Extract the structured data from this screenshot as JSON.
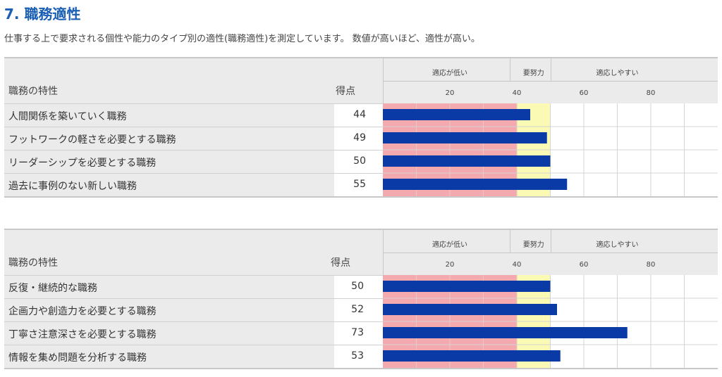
{
  "page": {
    "title": "7. 職務適性",
    "description": "仕事する上で要求される個性や能力のタイプ別の適性(職務適性)を測定しています。 数値が高いほど、適性が高い。"
  },
  "chart_data": [
    {
      "type": "bar",
      "orientation": "horizontal",
      "column_header_label": "職務の特性",
      "column_header_score": "得点",
      "zone_labels": [
        "適応が低い",
        "要努力",
        "適応しやすい"
      ],
      "zones": [
        {
          "from": 0,
          "to": 40,
          "color": "#f4a9ae"
        },
        {
          "from": 40,
          "to": 50,
          "color": "#fafab4"
        },
        {
          "from": 50,
          "to": 100,
          "color": "#ffffff"
        }
      ],
      "x_ticks": [
        "20",
        "40",
        "60",
        "80"
      ],
      "xlim": [
        0,
        100
      ],
      "bar_color": "#0a3aa6",
      "categories": [
        "人間関係を築いていく職務",
        "フットワークの軽さを必要とする職務",
        "リーダーシップを必要とする職務",
        "過去に事例のない新しい職務"
      ],
      "values": [
        44,
        49,
        50,
        55
      ],
      "score_labels": [
        "44",
        "49",
        "50",
        "55"
      ]
    },
    {
      "type": "bar",
      "orientation": "horizontal",
      "column_header_label": "職務の特性",
      "column_header_score": "得点",
      "zone_labels": [
        "適応が低い",
        "要努力",
        "適応しやすい"
      ],
      "zones": [
        {
          "from": 0,
          "to": 40,
          "color": "#f4a9ae"
        },
        {
          "from": 40,
          "to": 50,
          "color": "#fafab4"
        },
        {
          "from": 50,
          "to": 100,
          "color": "#ffffff"
        }
      ],
      "x_ticks": [
        "20",
        "40",
        "60",
        "80"
      ],
      "xlim": [
        0,
        100
      ],
      "bar_color": "#0a3aa6",
      "categories": [
        "反復・継続的な職務",
        "企画力や創造力を必要とする職務",
        "丁寧さ注意深さを必要とする職務",
        "情報を集め問題を分析する職務"
      ],
      "values": [
        50,
        52,
        73,
        53
      ],
      "score_labels": [
        "50",
        "52",
        "73",
        "53"
      ]
    }
  ]
}
